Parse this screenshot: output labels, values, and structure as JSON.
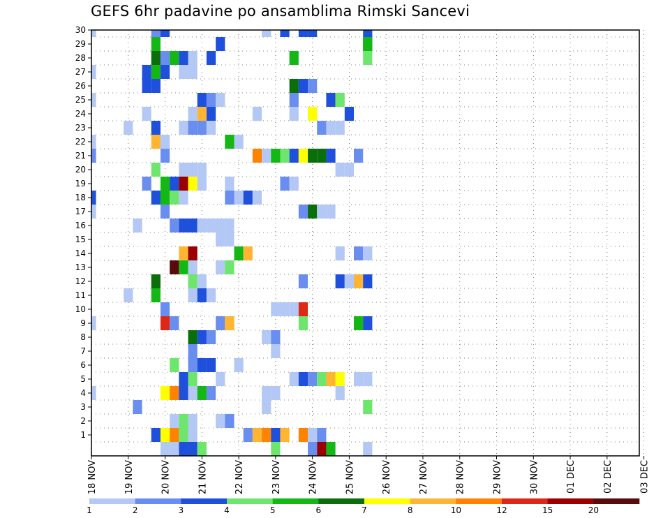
{
  "chart_data": {
    "type": "heatmap",
    "title": "GEFS 6hr padavine po ansamblima Rimski Sancevi",
    "x_start": "18 NOV",
    "x_end": "03 DEC",
    "x_step_hours": 6,
    "x_tick_labels": [
      "18 NOV",
      "19 NOV",
      "20 NOV",
      "21 NOV",
      "22 NOV",
      "23 NOV",
      "24 NOV",
      "25 NOV",
      "26 NOV",
      "27 NOV",
      "28 NOV",
      "29 NOV",
      "30 NOV",
      "01 DEC",
      "02 DEC",
      "03 DEC"
    ],
    "y_tick_labels": [
      "1",
      "2",
      "3",
      "4",
      "5",
      "6",
      "7",
      "8",
      "9",
      "10",
      "11",
      "12",
      "13",
      "14",
      "15",
      "16",
      "17",
      "18",
      "19",
      "20",
      "21",
      "22",
      "23",
      "24",
      "25",
      "26",
      "27",
      "28",
      "29",
      "30"
    ],
    "ylim": [
      0,
      30
    ],
    "grid": "dotted",
    "colorbar": {
      "placement": "bottom",
      "labels": [
        "1",
        "2",
        "3",
        "4",
        "5",
        "6",
        "7",
        "8",
        "10",
        "12",
        "15",
        "20"
      ],
      "colors": [
        "#b4c8f5",
        "#6a8ef0",
        "#1e50dc",
        "#6ee66e",
        "#14b814",
        "#0a6e0a",
        "#ffff00",
        "#ffb432",
        "#ff8200",
        "#dc2814",
        "#9b0000",
        "#5a0a0a"
      ]
    },
    "cells": [
      [
        0,
        30,
        1
      ],
      [
        7,
        30,
        2
      ],
      [
        8,
        30,
        3
      ],
      [
        19,
        30,
        1
      ],
      [
        21,
        30,
        3
      ],
      [
        23,
        30,
        3
      ],
      [
        24,
        30,
        3
      ],
      [
        30,
        30,
        3
      ],
      [
        30,
        29,
        3
      ],
      [
        7,
        29,
        5
      ],
      [
        14,
        29,
        3
      ],
      [
        30,
        29,
        5
      ],
      [
        22,
        28,
        5
      ],
      [
        30,
        28,
        4
      ],
      [
        7,
        28,
        6
      ],
      [
        13,
        28,
        1
      ],
      [
        8,
        28,
        2
      ],
      [
        9,
        28,
        5
      ],
      [
        10,
        28,
        3
      ],
      [
        11,
        28,
        1
      ],
      [
        13,
        28,
        3
      ],
      [
        8,
        27,
        3
      ],
      [
        7,
        27,
        5
      ],
      [
        10,
        27,
        1
      ],
      [
        11,
        27,
        1
      ],
      [
        0,
        27,
        1
      ],
      [
        6,
        27,
        3
      ],
      [
        6,
        26,
        3
      ],
      [
        7,
        26,
        3
      ],
      [
        23,
        26,
        2
      ],
      [
        24,
        26,
        2
      ],
      [
        22,
        26,
        6
      ],
      [
        23,
        26,
        3
      ],
      [
        0,
        25,
        1
      ],
      [
        12,
        25,
        3
      ],
      [
        13,
        25,
        2
      ],
      [
        14,
        25,
        1
      ],
      [
        26,
        25,
        3
      ],
      [
        27,
        25,
        4
      ],
      [
        22,
        25,
        2
      ],
      [
        11,
        24,
        1
      ],
      [
        12,
        24,
        8
      ],
      [
        13,
        24,
        3
      ],
      [
        24,
        24,
        7
      ],
      [
        28,
        24,
        3
      ],
      [
        22,
        24,
        1
      ],
      [
        6,
        24,
        1
      ],
      [
        18,
        24,
        1
      ],
      [
        4,
        23,
        1
      ],
      [
        7,
        23,
        3
      ],
      [
        10,
        23,
        1
      ],
      [
        11,
        23,
        2
      ],
      [
        12,
        23,
        2
      ],
      [
        13,
        23,
        1
      ],
      [
        25,
        23,
        2
      ],
      [
        26,
        23,
        1
      ],
      [
        27,
        23,
        1
      ],
      [
        0,
        22,
        1
      ],
      [
        7,
        22,
        8
      ],
      [
        8,
        22,
        1
      ],
      [
        15,
        22,
        5
      ],
      [
        16,
        22,
        1
      ],
      [
        0,
        21,
        2
      ],
      [
        8,
        21,
        2
      ],
      [
        18,
        21,
        9
      ],
      [
        19,
        21,
        1
      ],
      [
        20,
        21,
        5
      ],
      [
        21,
        21,
        4
      ],
      [
        22,
        21,
        3
      ],
      [
        23,
        21,
        7
      ],
      [
        24,
        21,
        6
      ],
      [
        25,
        21,
        6
      ],
      [
        26,
        21,
        3
      ],
      [
        29,
        21,
        2
      ],
      [
        7,
        20,
        4
      ],
      [
        10,
        20,
        1
      ],
      [
        11,
        20,
        1
      ],
      [
        12,
        20,
        1
      ],
      [
        27,
        20,
        1
      ],
      [
        28,
        20,
        1
      ],
      [
        6,
        19,
        2
      ],
      [
        8,
        19,
        5
      ],
      [
        9,
        19,
        3
      ],
      [
        10,
        19,
        11
      ],
      [
        11,
        19,
        7
      ],
      [
        12,
        19,
        1
      ],
      [
        15,
        19,
        1
      ],
      [
        21,
        19,
        2
      ],
      [
        22,
        19,
        1
      ],
      [
        0,
        18,
        3
      ],
      [
        7,
        18,
        3
      ],
      [
        8,
        18,
        5
      ],
      [
        9,
        18,
        4
      ],
      [
        10,
        18,
        1
      ],
      [
        15,
        18,
        2
      ],
      [
        16,
        18,
        1
      ],
      [
        17,
        18,
        3
      ],
      [
        18,
        18,
        1
      ],
      [
        0,
        17,
        1
      ],
      [
        8,
        17,
        2
      ],
      [
        23,
        17,
        2
      ],
      [
        24,
        17,
        6
      ],
      [
        25,
        17,
        1
      ],
      [
        26,
        17,
        1
      ],
      [
        5,
        16,
        1
      ],
      [
        9,
        16,
        2
      ],
      [
        10,
        16,
        3
      ],
      [
        11,
        16,
        3
      ],
      [
        12,
        16,
        1
      ],
      [
        13,
        16,
        1
      ],
      [
        14,
        16,
        1
      ],
      [
        15,
        16,
        1
      ],
      [
        14,
        15,
        1
      ],
      [
        15,
        15,
        1
      ],
      [
        10,
        14,
        8
      ],
      [
        11,
        14,
        11
      ],
      [
        16,
        14,
        5
      ],
      [
        17,
        14,
        8
      ],
      [
        27,
        14,
        1
      ],
      [
        29,
        14,
        2
      ],
      [
        30,
        14,
        1
      ],
      [
        9,
        13,
        12
      ],
      [
        10,
        13,
        5
      ],
      [
        11,
        13,
        1
      ],
      [
        14,
        13,
        1
      ],
      [
        15,
        13,
        4
      ],
      [
        7,
        12,
        6
      ],
      [
        11,
        12,
        4
      ],
      [
        12,
        12,
        1
      ],
      [
        23,
        12,
        2
      ],
      [
        27,
        12,
        3
      ],
      [
        28,
        12,
        1
      ],
      [
        29,
        12,
        8
      ],
      [
        30,
        12,
        3
      ],
      [
        4,
        11,
        1
      ],
      [
        7,
        11,
        5
      ],
      [
        11,
        11,
        1
      ],
      [
        12,
        11,
        3
      ],
      [
        13,
        11,
        1
      ],
      [
        8,
        10,
        2
      ],
      [
        20,
        10,
        1
      ],
      [
        21,
        10,
        1
      ],
      [
        22,
        10,
        1
      ],
      [
        23,
        10,
        10
      ],
      [
        0,
        9,
        1
      ],
      [
        8,
        9,
        10
      ],
      [
        9,
        9,
        2
      ],
      [
        14,
        9,
        2
      ],
      [
        15,
        9,
        8
      ],
      [
        23,
        9,
        4
      ],
      [
        29,
        9,
        5
      ],
      [
        30,
        9,
        3
      ],
      [
        11,
        8,
        6
      ],
      [
        12,
        8,
        3
      ],
      [
        13,
        8,
        2
      ],
      [
        19,
        8,
        1
      ],
      [
        20,
        8,
        2
      ],
      [
        11,
        7,
        2
      ],
      [
        20,
        7,
        1
      ],
      [
        9,
        6,
        4
      ],
      [
        11,
        6,
        2
      ],
      [
        12,
        6,
        3
      ],
      [
        13,
        6,
        3
      ],
      [
        16,
        6,
        1
      ],
      [
        10,
        5,
        3
      ],
      [
        11,
        5,
        4
      ],
      [
        14,
        5,
        1
      ],
      [
        22,
        5,
        1
      ],
      [
        23,
        5,
        3
      ],
      [
        24,
        5,
        2
      ],
      [
        25,
        5,
        4
      ],
      [
        26,
        5,
        8
      ],
      [
        27,
        5,
        7
      ],
      [
        29,
        5,
        1
      ],
      [
        30,
        5,
        1
      ],
      [
        0,
        4,
        1
      ],
      [
        8,
        4,
        7
      ],
      [
        9,
        4,
        9
      ],
      [
        10,
        4,
        3
      ],
      [
        11,
        4,
        1
      ],
      [
        12,
        4,
        5
      ],
      [
        13,
        4,
        2
      ],
      [
        19,
        4,
        1
      ],
      [
        20,
        4,
        1
      ],
      [
        27,
        4,
        1
      ],
      [
        5,
        3,
        2
      ],
      [
        19,
        3,
        1
      ],
      [
        30,
        3,
        4
      ],
      [
        9,
        2,
        1
      ],
      [
        10,
        2,
        4
      ],
      [
        11,
        2,
        1
      ],
      [
        14,
        2,
        1
      ],
      [
        15,
        2,
        2
      ],
      [
        7,
        1,
        3
      ],
      [
        8,
        1,
        7
      ],
      [
        9,
        1,
        9
      ],
      [
        10,
        1,
        4
      ],
      [
        11,
        1,
        1
      ],
      [
        17,
        1,
        2
      ],
      [
        18,
        1,
        8
      ],
      [
        19,
        1,
        9
      ],
      [
        20,
        1,
        3
      ],
      [
        21,
        1,
        8
      ],
      [
        23,
        1,
        9
      ],
      [
        24,
        1,
        1
      ],
      [
        25,
        1,
        2
      ],
      [
        8,
        0,
        1
      ],
      [
        9,
        0,
        1
      ],
      [
        10,
        0,
        3
      ],
      [
        11,
        0,
        3
      ],
      [
        12,
        0,
        4
      ],
      [
        20,
        0,
        4
      ],
      [
        24,
        0,
        2
      ],
      [
        25,
        0,
        11
      ],
      [
        26,
        0,
        5
      ],
      [
        30,
        0,
        1
      ]
    ]
  }
}
